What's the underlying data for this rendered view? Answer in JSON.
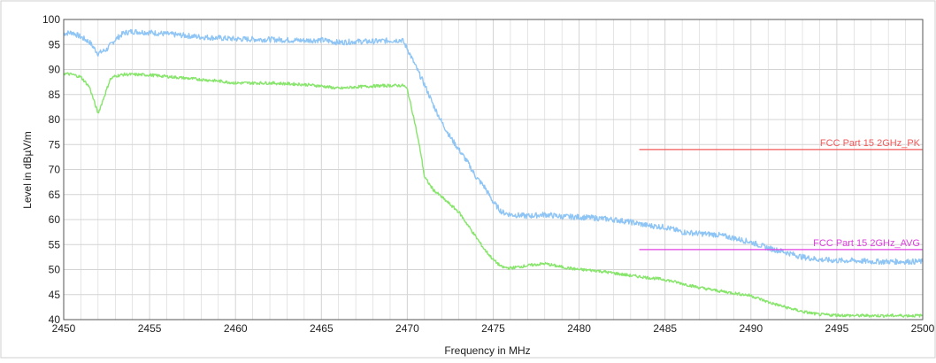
{
  "chart_data": {
    "type": "line",
    "title": "",
    "xlabel": "Frequency in MHz",
    "ylabel": "Level in dBµV/m",
    "xlim": [
      2450,
      2500
    ],
    "ylim": [
      40,
      100
    ],
    "x_ticks": [
      2450,
      2455,
      2460,
      2465,
      2470,
      2475,
      2480,
      2485,
      2490,
      2495,
      2500
    ],
    "y_ticks": [
      40,
      45,
      50,
      55,
      60,
      65,
      70,
      75,
      80,
      85,
      90,
      95,
      100
    ],
    "grid": true,
    "series": [
      {
        "color": "#8ec5f5",
        "x": [
          2450,
          2450.5,
          2451,
          2451.5,
          2452,
          2452.5,
          2453,
          2453.5,
          2454,
          2455,
          2456,
          2457,
          2458,
          2460,
          2462,
          2464,
          2465,
          2466,
          2467,
          2468,
          2469,
          2469.7,
          2470,
          2470.5,
          2471,
          2471.5,
          2472,
          2472.5,
          2473,
          2473.5,
          2474,
          2474.5,
          2475,
          2475.5,
          2476,
          2477,
          2478,
          2479,
          2480,
          2481,
          2482,
          2483,
          2484,
          2485,
          2486,
          2487,
          2488,
          2489,
          2490,
          2491,
          2492,
          2493,
          2494,
          2495,
          2496,
          2497,
          2498,
          2499,
          2500
        ],
        "values": [
          97.2,
          97.4,
          96.5,
          95.5,
          93.2,
          94,
          96,
          97.3,
          97.6,
          97.4,
          97.1,
          96.8,
          96.5,
          96.1,
          96.0,
          95.8,
          95.9,
          95.4,
          95.6,
          95.6,
          95.8,
          95.9,
          94.2,
          90.5,
          87.0,
          83.0,
          79.5,
          76.5,
          74.0,
          71.5,
          68.5,
          66.5,
          63.5,
          61.5,
          61.0,
          60.7,
          61.0,
          60.6,
          60.5,
          60.3,
          60.0,
          59.5,
          58.8,
          58.5,
          57.5,
          57.2,
          57.0,
          56.3,
          55.5,
          54.3,
          53.5,
          52.5,
          52.0,
          51.8,
          51.8,
          51.6,
          51.6,
          51.6,
          51.6
        ]
      },
      {
        "color": "#86e56a",
        "x": [
          2450,
          2450.5,
          2451,
          2451.5,
          2452,
          2452.3,
          2452.7,
          2453,
          2453.5,
          2454,
          2455,
          2456,
          2457,
          2458,
          2459,
          2460,
          2462,
          2464,
          2465,
          2466,
          2467,
          2468,
          2469,
          2469.8,
          2470,
          2470.4,
          2470.8,
          2471,
          2471.5,
          2472,
          2472.5,
          2473,
          2473.5,
          2474,
          2474.5,
          2475,
          2475.5,
          2476,
          2477,
          2478,
          2479,
          2480,
          2481,
          2482,
          2483,
          2484,
          2485,
          2486,
          2487,
          2488,
          2489,
          2490,
          2491,
          2492,
          2493,
          2494,
          2495,
          2496,
          2497,
          2498,
          2499,
          2500
        ],
        "values": [
          89.2,
          89.0,
          88.5,
          86.5,
          81.2,
          84.0,
          88.0,
          88.7,
          89.0,
          89.0,
          88.9,
          88.6,
          88.3,
          88.0,
          87.7,
          87.3,
          87.3,
          87.0,
          86.7,
          86.2,
          86.5,
          86.7,
          86.8,
          86.8,
          86.0,
          80.0,
          73.0,
          68.5,
          66.0,
          64.5,
          63.0,
          61.5,
          59.0,
          56.5,
          54.0,
          52.0,
          50.5,
          50.3,
          50.8,
          51.2,
          50.5,
          50.0,
          49.8,
          49.3,
          48.8,
          48.4,
          48.0,
          47.2,
          46.4,
          45.8,
          45.3,
          44.8,
          43.5,
          42.5,
          41.6,
          41.0,
          40.9,
          40.8,
          40.8,
          40.8,
          40.8,
          40.8
        ]
      }
    ],
    "limit_lines": [
      {
        "name": "FCC Part 15 2GHz_PK",
        "color": "#f25a5a",
        "x": [
          2483.5,
          2500
        ],
        "y": 74
      },
      {
        "name": "FCC Part 15 2GHz_AVG",
        "color": "#e040e0",
        "x": [
          2483.5,
          2500
        ],
        "y": 54
      }
    ],
    "colors": {
      "grid": "#d4d4d4",
      "axis": "#555555",
      "text": "#222222"
    }
  }
}
